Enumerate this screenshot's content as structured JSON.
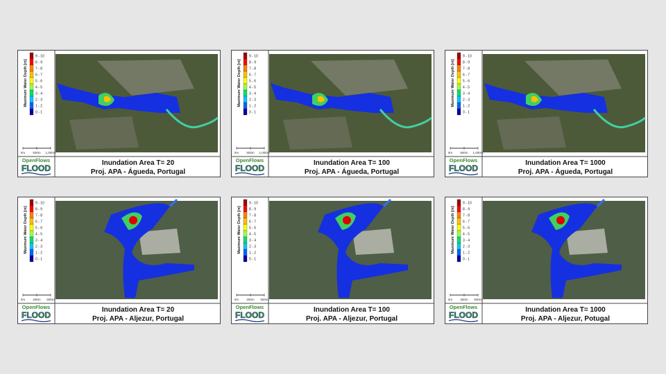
{
  "legend": {
    "axis_label": "Maximum Water Depth [m]",
    "classes": [
      "9 - 10",
      "8 - 9",
      "7 - 8",
      "6 - 7",
      "5 - 6",
      "4 - 5",
      "3 - 4",
      "2 - 3",
      "1 - 2",
      "0 - 1"
    ]
  },
  "logo": {
    "line1": "OpenFlows",
    "line2": "FLOOD"
  },
  "panels": [
    {
      "title": "Inundation Area T= 20",
      "subtitle": "Proj. APA - Águeda, Portugal",
      "scale_labels": [
        "0m",
        "500m",
        "1,000m"
      ]
    },
    {
      "title": "Inundation Area T= 100",
      "subtitle": "Proj. APA - Águeda, Portugal",
      "scale_labels": [
        "0m",
        "500m",
        "1,000m"
      ]
    },
    {
      "title": "Inundation Area T= 1000",
      "subtitle": "Proj. APA - Águeda, Portugal",
      "scale_labels": [
        "0m",
        "500m",
        "1,000m"
      ]
    },
    {
      "title": "Inundation Area T= 20",
      "subtitle": "Proj. APA - Aljezur, Portugal",
      "scale_labels": [
        "0m",
        "250m",
        "500m"
      ]
    },
    {
      "title": "Inundation Area T= 100",
      "subtitle": "Proj. APA - Aljezur, Portugal",
      "scale_labels": [
        "0m",
        "250m",
        "500m"
      ]
    },
    {
      "title": "Inundation Area T= 1000",
      "subtitle": "Proj. APA - Aljezur, Potugal",
      "scale_labels": [
        "0m",
        "250m",
        "500m"
      ]
    }
  ]
}
